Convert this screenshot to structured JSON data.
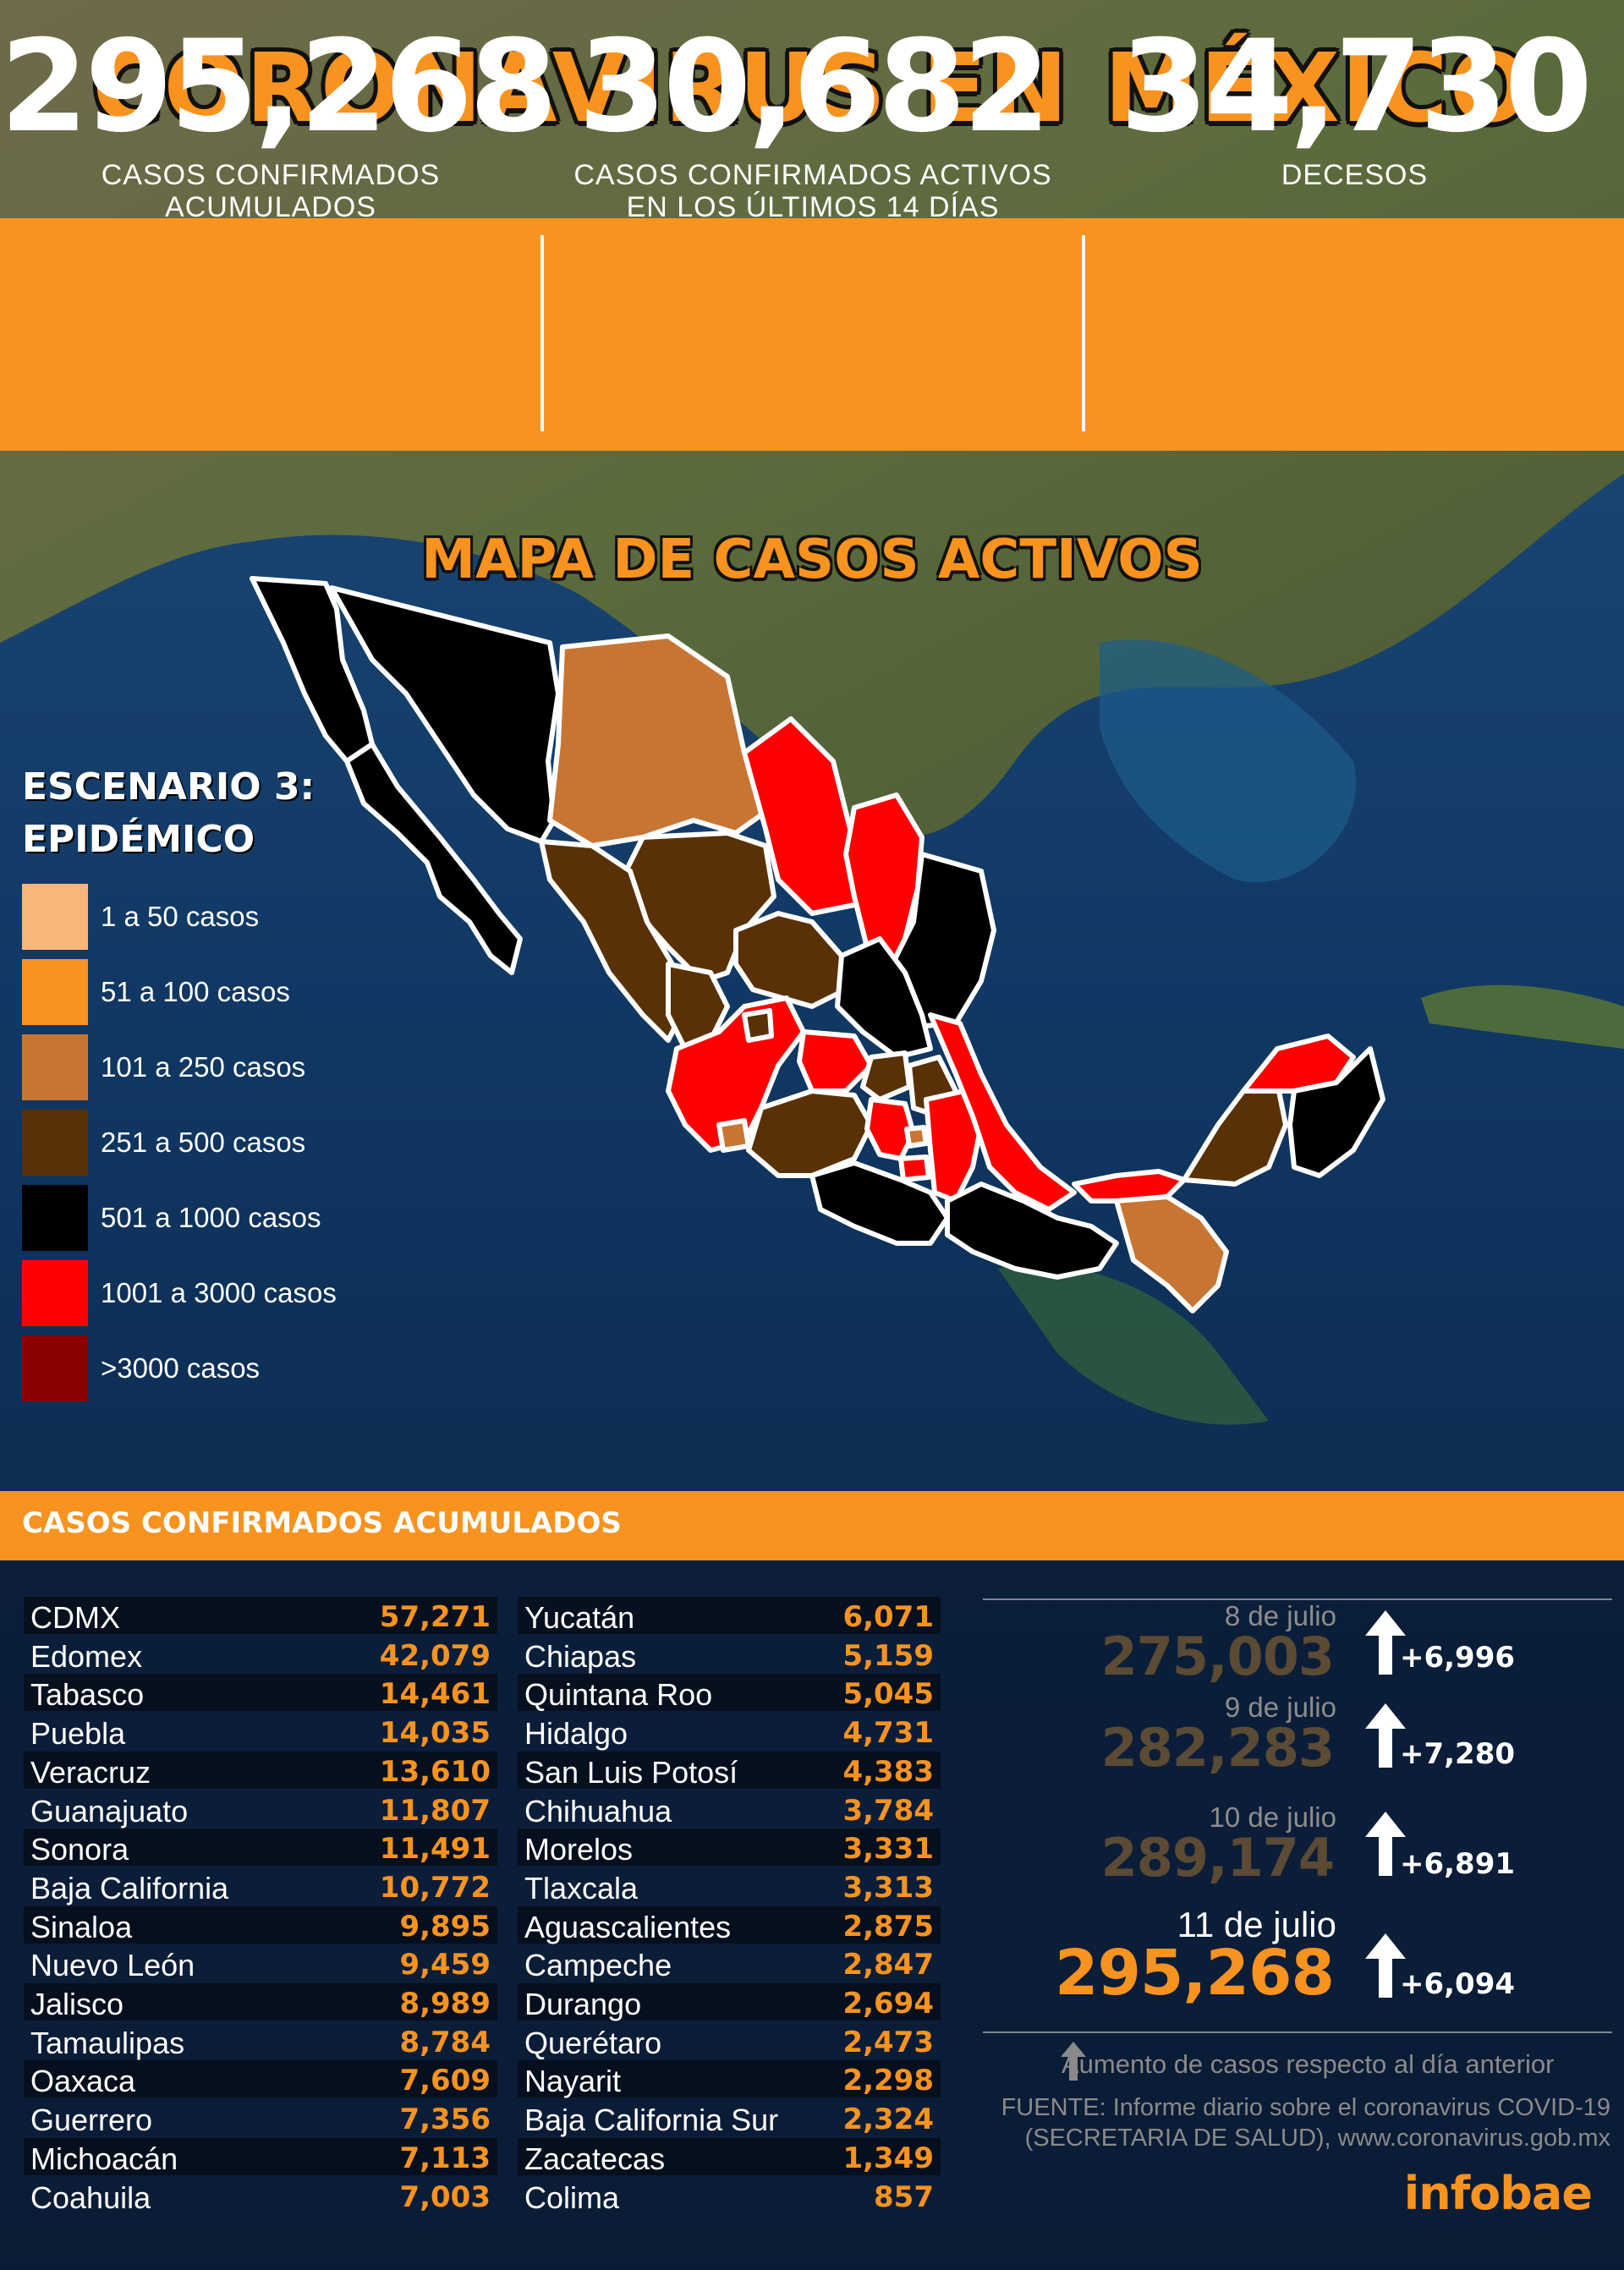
{
  "title": "CORONAVIRUS EN MÉXICO",
  "colors": {
    "accent": "#f7931e",
    "level1": "#f9b679",
    "level2": "#f7931e",
    "level3": "#c87533",
    "level4": "#5a3106",
    "level5": "#000000",
    "level6": "#ff0000",
    "level7": "#8b0000"
  },
  "stats": [
    {
      "value": "295,268",
      "label": "CASOS CONFIRMADOS ACUMULADOS"
    },
    {
      "value": "30,682",
      "label": "CASOS CONFIRMADOS ACTIVOS",
      "label2": "EN LOS ÚLTIMOS 14 DÍAS"
    },
    {
      "value": "34,730",
      "label": "DECESOS"
    }
  ],
  "map_title": "MAPA DE CASOS ACTIVOS",
  "legend": {
    "title1": "ESCENARIO 3:",
    "title2": "EPIDÉMICO",
    "items": [
      {
        "label": "1 a 50 casos",
        "color": "#f9b679"
      },
      {
        "label": "51 a 100 casos",
        "color": "#f7931e"
      },
      {
        "label": "101 a 250 casos",
        "color": "#c87533"
      },
      {
        "label": "251 a 500 casos",
        "color": "#5a3106"
      },
      {
        "label": "501 a 1000 casos",
        "color": "#000000"
      },
      {
        "label": "1001 a 3000 casos",
        "color": "#ff0000"
      },
      {
        "label": ">3000 casos",
        "color": "#8b0000"
      }
    ]
  },
  "cases_header": "CASOS CONFIRMADOS ACUMULADOS",
  "states_left": [
    {
      "name": "CDMX",
      "value": "57,271"
    },
    {
      "name": "Edomex",
      "value": "42,079"
    },
    {
      "name": "Tabasco",
      "value": "14,461"
    },
    {
      "name": "Puebla",
      "value": "14,035"
    },
    {
      "name": "Veracruz",
      "value": "13,610"
    },
    {
      "name": "Guanajuato",
      "value": "11,807"
    },
    {
      "name": "Sonora",
      "value": "11,491"
    },
    {
      "name": "Baja California",
      "value": "10,772"
    },
    {
      "name": "Sinaloa",
      "value": "9,895"
    },
    {
      "name": "Nuevo León",
      "value": "9,459"
    },
    {
      "name": "Jalisco",
      "value": "8,989"
    },
    {
      "name": "Tamaulipas",
      "value": "8,784"
    },
    {
      "name": "Oaxaca",
      "value": "7,609"
    },
    {
      "name": "Guerrero",
      "value": "7,356"
    },
    {
      "name": "Michoacán",
      "value": "7,113"
    },
    {
      "name": "Coahuila",
      "value": "7,003"
    }
  ],
  "states_right": [
    {
      "name": "Yucatán",
      "value": "6,071"
    },
    {
      "name": "Chiapas",
      "value": "5,159"
    },
    {
      "name": "Quintana Roo",
      "value": "5,045"
    },
    {
      "name": "Hidalgo",
      "value": "4,731"
    },
    {
      "name": "San Luis Potosí",
      "value": "4,383"
    },
    {
      "name": "Chihuahua",
      "value": "3,784"
    },
    {
      "name": "Morelos",
      "value": "3,331"
    },
    {
      "name": "Tlaxcala",
      "value": "3,313"
    },
    {
      "name": "Aguascalientes",
      "value": "2,875"
    },
    {
      "name": "Campeche",
      "value": "2,847"
    },
    {
      "name": "Durango",
      "value": "2,694"
    },
    {
      "name": "Querétaro",
      "value": "2,473"
    },
    {
      "name": "Nayarit",
      "value": "2,298"
    },
    {
      "name": "Baja California Sur",
      "value": "2,324"
    },
    {
      "name": "Zacatecas",
      "value": "1,349"
    },
    {
      "name": "Colima",
      "value": "857"
    }
  ],
  "timeline": [
    {
      "date": "8 de julio",
      "total": "275,003",
      "increase": "+6,996"
    },
    {
      "date": "9 de julio",
      "total": "282,283",
      "increase": "+7,280"
    },
    {
      "date": "10 de julio",
      "total": "289,174",
      "increase": "+6,891"
    },
    {
      "date": "11 de julio",
      "total": "295,268",
      "increase": "+6,094"
    }
  ],
  "note": "Aumento de casos respecto al día anterior",
  "source_line1": "FUENTE:  Informe diario sobre el coronavirus COVID-19",
  "source_line2": "(SECRETARIA DE SALUD), www.coronavirus.gob.mx",
  "logo": "infobae"
}
